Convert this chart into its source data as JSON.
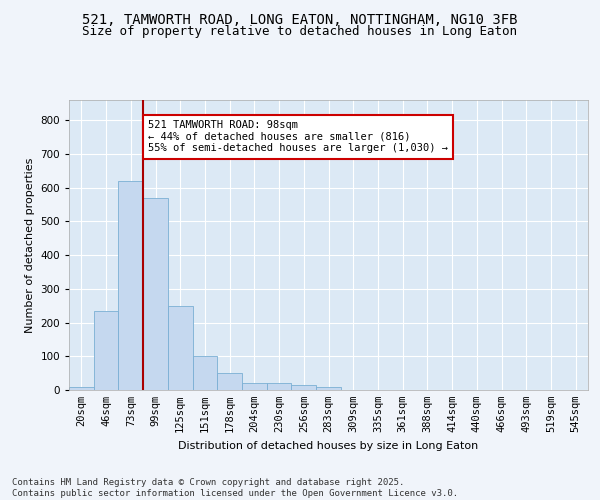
{
  "title_line1": "521, TAMWORTH ROAD, LONG EATON, NOTTINGHAM, NG10 3FB",
  "title_line2": "Size of property relative to detached houses in Long Eaton",
  "xlabel": "Distribution of detached houses by size in Long Eaton",
  "ylabel": "Number of detached properties",
  "bar_color": "#c5d8ef",
  "bar_edge_color": "#7aafd4",
  "categories": [
    "20sqm",
    "46sqm",
    "73sqm",
    "99sqm",
    "125sqm",
    "151sqm",
    "178sqm",
    "204sqm",
    "230sqm",
    "256sqm",
    "283sqm",
    "309sqm",
    "335sqm",
    "361sqm",
    "388sqm",
    "414sqm",
    "440sqm",
    "466sqm",
    "493sqm",
    "519sqm",
    "545sqm"
  ],
  "values": [
    10,
    233,
    620,
    570,
    250,
    100,
    50,
    22,
    22,
    15,
    8,
    0,
    0,
    0,
    0,
    0,
    0,
    0,
    0,
    0,
    0
  ],
  "ylim": [
    0,
    860
  ],
  "yticks": [
    0,
    100,
    200,
    300,
    400,
    500,
    600,
    700,
    800
  ],
  "vline_x_index": 3,
  "vline_color": "#aa0000",
  "annotation_text": "521 TAMWORTH ROAD: 98sqm\n← 44% of detached houses are smaller (816)\n55% of semi-detached houses are larger (1,030) →",
  "annotation_box_color": "#ffffff",
  "annotation_box_edge": "#cc0000",
  "footnote": "Contains HM Land Registry data © Crown copyright and database right 2025.\nContains public sector information licensed under the Open Government Licence v3.0.",
  "bg_color": "#dce9f5",
  "plot_bg_color": "#dce9f5",
  "fig_bg_color": "#f0f4fa",
  "grid_color": "#ffffff",
  "title_fontsize": 10,
  "subtitle_fontsize": 9,
  "axis_label_fontsize": 8,
  "tick_fontsize": 7.5,
  "footnote_fontsize": 6.5
}
